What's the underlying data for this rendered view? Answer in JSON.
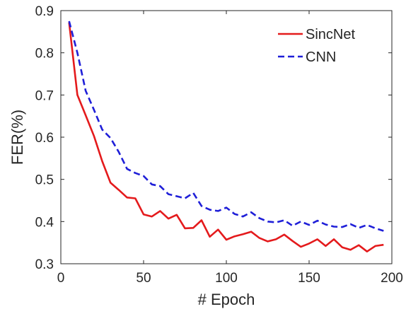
{
  "chart_data": {
    "type": "line",
    "title": "",
    "xlabel": "# Epoch",
    "ylabel": "FER(%)",
    "xlim": [
      0,
      200
    ],
    "ylim": [
      0.3,
      0.9
    ],
    "xticks": [
      0,
      50,
      100,
      150,
      200
    ],
    "yticks": [
      0.3,
      0.4,
      0.5,
      0.6,
      0.7,
      0.8,
      0.9
    ],
    "xtick_labels": [
      "0",
      "50",
      "100",
      "150",
      "200"
    ],
    "ytick_labels": [
      "0.3",
      "0.4",
      "0.5",
      "0.6",
      "0.7",
      "0.8",
      "0.9"
    ],
    "grid": false,
    "legend_position": "top-right",
    "series": [
      {
        "name": "SincNet",
        "color": "#e41a1c",
        "style": "solid",
        "x": [
          5,
          10,
          15,
          20,
          25,
          30,
          35,
          40,
          45,
          50,
          55,
          60,
          65,
          70,
          75,
          80,
          85,
          90,
          95,
          100,
          105,
          110,
          115,
          120,
          125,
          130,
          135,
          140,
          145,
          150,
          155,
          160,
          165,
          170,
          175,
          180,
          185,
          190,
          195
        ],
        "values": [
          0.872,
          0.7,
          0.652,
          0.603,
          0.543,
          0.492,
          0.475,
          0.457,
          0.455,
          0.417,
          0.412,
          0.425,
          0.407,
          0.416,
          0.384,
          0.385,
          0.403,
          0.364,
          0.381,
          0.357,
          0.365,
          0.37,
          0.376,
          0.361,
          0.353,
          0.358,
          0.369,
          0.354,
          0.34,
          0.348,
          0.358,
          0.342,
          0.358,
          0.339,
          0.333,
          0.344,
          0.329,
          0.342,
          0.345
        ]
      },
      {
        "name": "CNN",
        "color": "#1f1fd8",
        "style": "dashed",
        "x": [
          5,
          10,
          15,
          20,
          25,
          30,
          35,
          40,
          45,
          50,
          55,
          60,
          65,
          70,
          75,
          80,
          85,
          90,
          95,
          100,
          105,
          110,
          115,
          120,
          125,
          130,
          135,
          140,
          145,
          150,
          155,
          160,
          165,
          170,
          175,
          180,
          185,
          190,
          195
        ],
        "values": [
          0.875,
          0.8,
          0.71,
          0.665,
          0.618,
          0.598,
          0.565,
          0.525,
          0.515,
          0.508,
          0.488,
          0.484,
          0.465,
          0.46,
          0.455,
          0.468,
          0.437,
          0.428,
          0.425,
          0.433,
          0.418,
          0.412,
          0.422,
          0.408,
          0.4,
          0.398,
          0.403,
          0.39,
          0.4,
          0.392,
          0.402,
          0.393,
          0.388,
          0.387,
          0.394,
          0.385,
          0.392,
          0.384,
          0.378
        ]
      }
    ]
  }
}
